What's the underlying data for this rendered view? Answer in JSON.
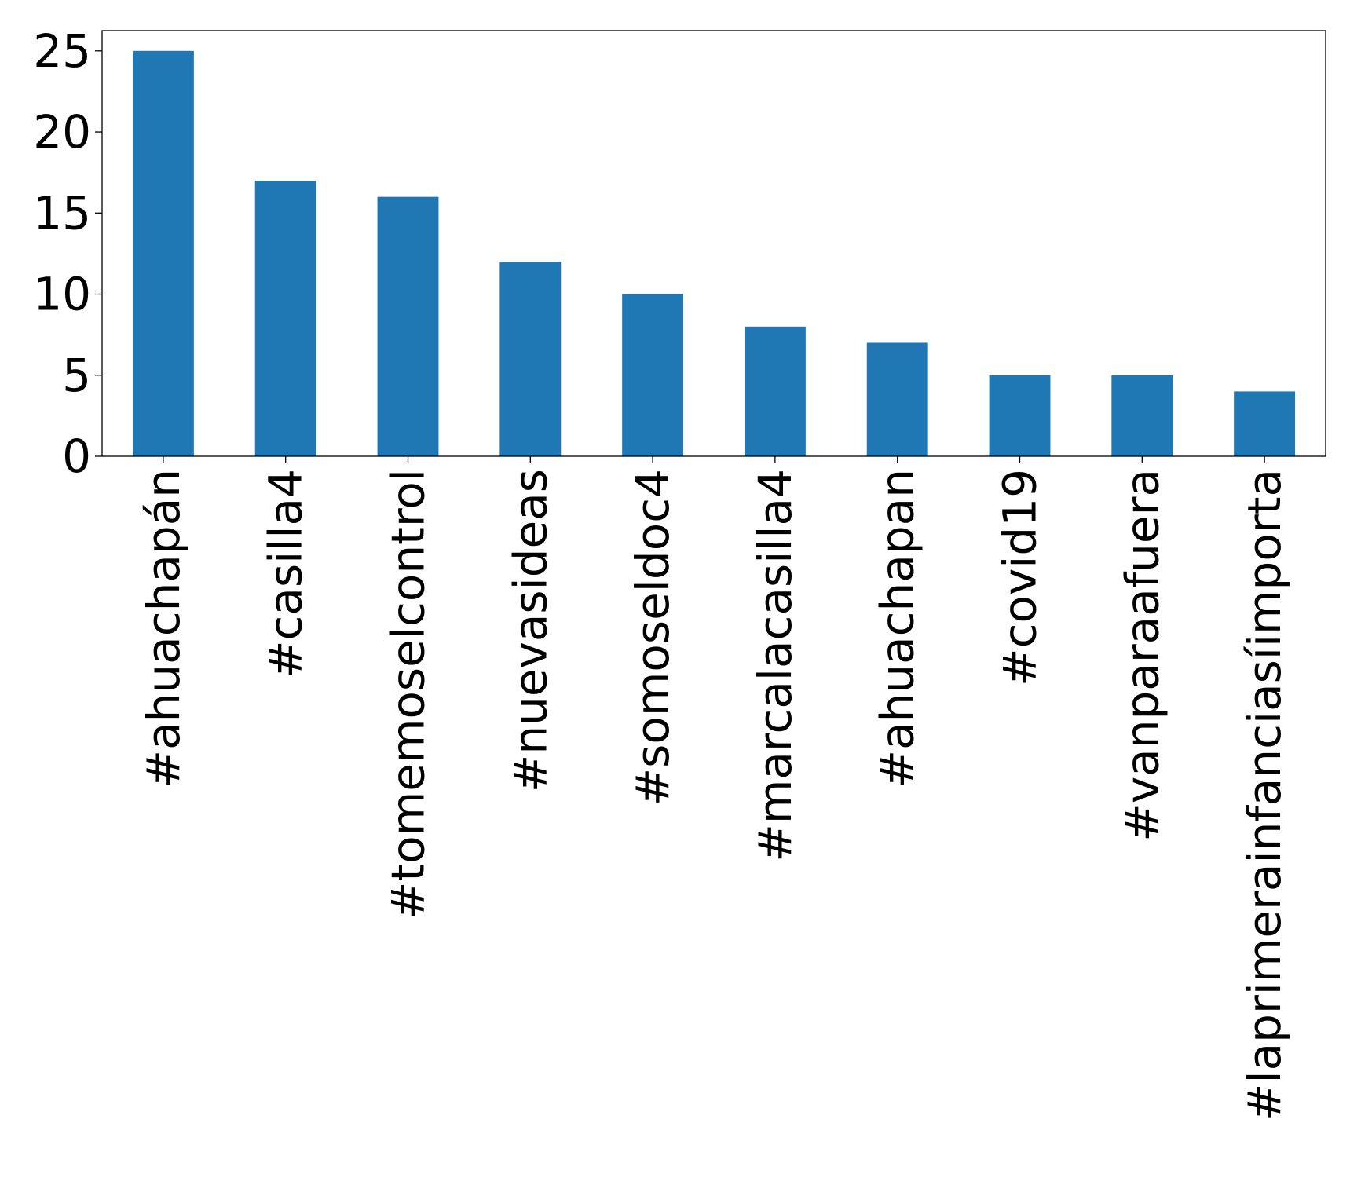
{
  "chart_data": {
    "type": "bar",
    "title": "",
    "xlabel": "",
    "ylabel": "",
    "categories": [
      "#ahuachapán",
      "#casilla4",
      "#tomemoselcontrol",
      "#nuevasideas",
      "#somoseldoc4",
      "#marcalacasilla4",
      "#ahuachapan",
      "#covid19",
      "#vanparaafuera",
      "#laprimerainfanciasíimporta"
    ],
    "values": [
      25,
      17,
      16,
      12,
      10,
      8,
      7,
      5,
      5,
      4
    ],
    "ylim": [
      0,
      26.25
    ],
    "yticks": [
      0,
      5,
      10,
      15,
      20,
      25
    ],
    "ytick_labels": [
      "0",
      "5",
      "10",
      "15",
      "20",
      "25"
    ],
    "grid": false,
    "legend": "none",
    "bar_color": "#1f77b4",
    "x_tick_rotation": "vertical"
  }
}
